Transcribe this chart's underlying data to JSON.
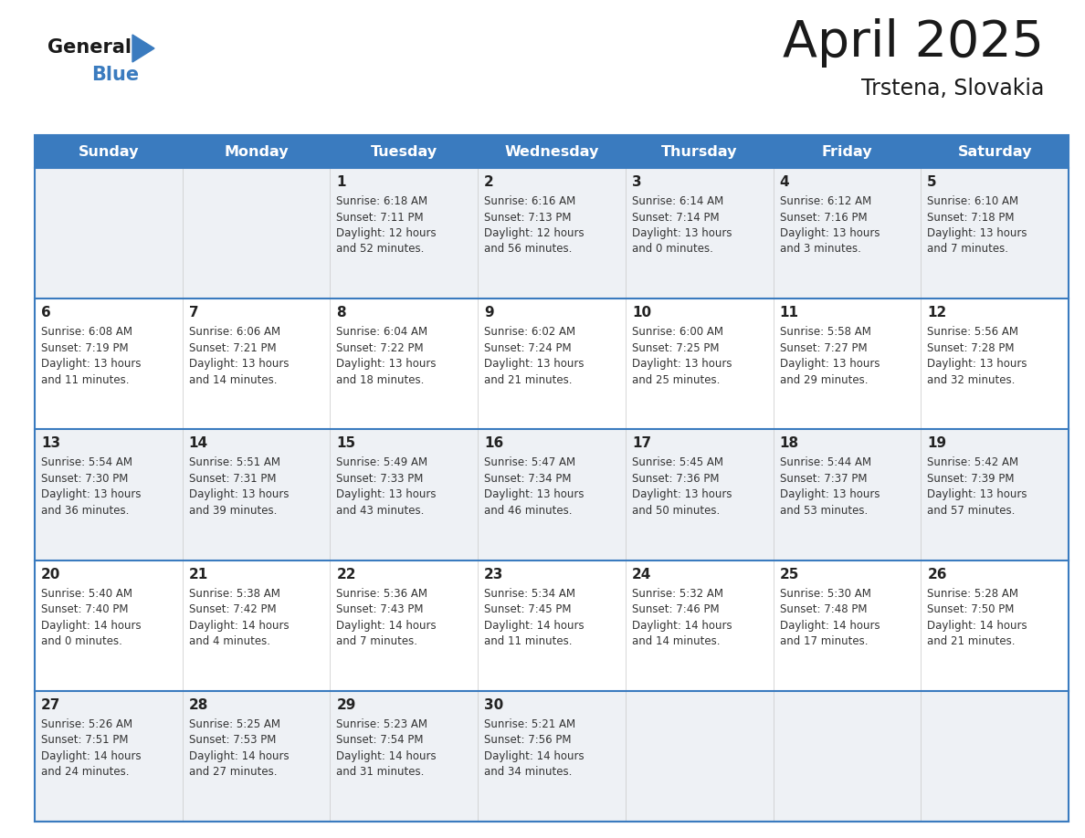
{
  "title": "April 2025",
  "subtitle": "Trstena, Slovakia",
  "days_of_week": [
    "Sunday",
    "Monday",
    "Tuesday",
    "Wednesday",
    "Thursday",
    "Friday",
    "Saturday"
  ],
  "header_bg": "#3a7bbf",
  "header_text": "#ffffff",
  "row_bg_light": "#eef1f5",
  "row_bg_white": "#ffffff",
  "border_color": "#3a7bbf",
  "day_number_color": "#222222",
  "text_color": "#333333",
  "title_color": "#1a1a1a",
  "subtitle_color": "#1a1a1a",
  "logo_general_color": "#1a1a1a",
  "logo_blue_color": "#3a7bbf",
  "calendar_data": [
    [
      {
        "day": null,
        "info": null
      },
      {
        "day": null,
        "info": null
      },
      {
        "day": 1,
        "sunrise": "6:18 AM",
        "sunset": "7:11 PM",
        "daylight": "12 hours",
        "daylight2": "and 52 minutes."
      },
      {
        "day": 2,
        "sunrise": "6:16 AM",
        "sunset": "7:13 PM",
        "daylight": "12 hours",
        "daylight2": "and 56 minutes."
      },
      {
        "day": 3,
        "sunrise": "6:14 AM",
        "sunset": "7:14 PM",
        "daylight": "13 hours",
        "daylight2": "and 0 minutes."
      },
      {
        "day": 4,
        "sunrise": "6:12 AM",
        "sunset": "7:16 PM",
        "daylight": "13 hours",
        "daylight2": "and 3 minutes."
      },
      {
        "day": 5,
        "sunrise": "6:10 AM",
        "sunset": "7:18 PM",
        "daylight": "13 hours",
        "daylight2": "and 7 minutes."
      }
    ],
    [
      {
        "day": 6,
        "sunrise": "6:08 AM",
        "sunset": "7:19 PM",
        "daylight": "13 hours",
        "daylight2": "and 11 minutes."
      },
      {
        "day": 7,
        "sunrise": "6:06 AM",
        "sunset": "7:21 PM",
        "daylight": "13 hours",
        "daylight2": "and 14 minutes."
      },
      {
        "day": 8,
        "sunrise": "6:04 AM",
        "sunset": "7:22 PM",
        "daylight": "13 hours",
        "daylight2": "and 18 minutes."
      },
      {
        "day": 9,
        "sunrise": "6:02 AM",
        "sunset": "7:24 PM",
        "daylight": "13 hours",
        "daylight2": "and 21 minutes."
      },
      {
        "day": 10,
        "sunrise": "6:00 AM",
        "sunset": "7:25 PM",
        "daylight": "13 hours",
        "daylight2": "and 25 minutes."
      },
      {
        "day": 11,
        "sunrise": "5:58 AM",
        "sunset": "7:27 PM",
        "daylight": "13 hours",
        "daylight2": "and 29 minutes."
      },
      {
        "day": 12,
        "sunrise": "5:56 AM",
        "sunset": "7:28 PM",
        "daylight": "13 hours",
        "daylight2": "and 32 minutes."
      }
    ],
    [
      {
        "day": 13,
        "sunrise": "5:54 AM",
        "sunset": "7:30 PM",
        "daylight": "13 hours",
        "daylight2": "and 36 minutes."
      },
      {
        "day": 14,
        "sunrise": "5:51 AM",
        "sunset": "7:31 PM",
        "daylight": "13 hours",
        "daylight2": "and 39 minutes."
      },
      {
        "day": 15,
        "sunrise": "5:49 AM",
        "sunset": "7:33 PM",
        "daylight": "13 hours",
        "daylight2": "and 43 minutes."
      },
      {
        "day": 16,
        "sunrise": "5:47 AM",
        "sunset": "7:34 PM",
        "daylight": "13 hours",
        "daylight2": "and 46 minutes."
      },
      {
        "day": 17,
        "sunrise": "5:45 AM",
        "sunset": "7:36 PM",
        "daylight": "13 hours",
        "daylight2": "and 50 minutes."
      },
      {
        "day": 18,
        "sunrise": "5:44 AM",
        "sunset": "7:37 PM",
        "daylight": "13 hours",
        "daylight2": "and 53 minutes."
      },
      {
        "day": 19,
        "sunrise": "5:42 AM",
        "sunset": "7:39 PM",
        "daylight": "13 hours",
        "daylight2": "and 57 minutes."
      }
    ],
    [
      {
        "day": 20,
        "sunrise": "5:40 AM",
        "sunset": "7:40 PM",
        "daylight": "14 hours",
        "daylight2": "and 0 minutes."
      },
      {
        "day": 21,
        "sunrise": "5:38 AM",
        "sunset": "7:42 PM",
        "daylight": "14 hours",
        "daylight2": "and 4 minutes."
      },
      {
        "day": 22,
        "sunrise": "5:36 AM",
        "sunset": "7:43 PM",
        "daylight": "14 hours",
        "daylight2": "and 7 minutes."
      },
      {
        "day": 23,
        "sunrise": "5:34 AM",
        "sunset": "7:45 PM",
        "daylight": "14 hours",
        "daylight2": "and 11 minutes."
      },
      {
        "day": 24,
        "sunrise": "5:32 AM",
        "sunset": "7:46 PM",
        "daylight": "14 hours",
        "daylight2": "and 14 minutes."
      },
      {
        "day": 25,
        "sunrise": "5:30 AM",
        "sunset": "7:48 PM",
        "daylight": "14 hours",
        "daylight2": "and 17 minutes."
      },
      {
        "day": 26,
        "sunrise": "5:28 AM",
        "sunset": "7:50 PM",
        "daylight": "14 hours",
        "daylight2": "and 21 minutes."
      }
    ],
    [
      {
        "day": 27,
        "sunrise": "5:26 AM",
        "sunset": "7:51 PM",
        "daylight": "14 hours",
        "daylight2": "and 24 minutes."
      },
      {
        "day": 28,
        "sunrise": "5:25 AM",
        "sunset": "7:53 PM",
        "daylight": "14 hours",
        "daylight2": "and 27 minutes."
      },
      {
        "day": 29,
        "sunrise": "5:23 AM",
        "sunset": "7:54 PM",
        "daylight": "14 hours",
        "daylight2": "and 31 minutes."
      },
      {
        "day": 30,
        "sunrise": "5:21 AM",
        "sunset": "7:56 PM",
        "daylight": "14 hours",
        "daylight2": "and 34 minutes."
      },
      {
        "day": null,
        "info": null
      },
      {
        "day": null,
        "info": null
      },
      {
        "day": null,
        "info": null
      }
    ]
  ]
}
